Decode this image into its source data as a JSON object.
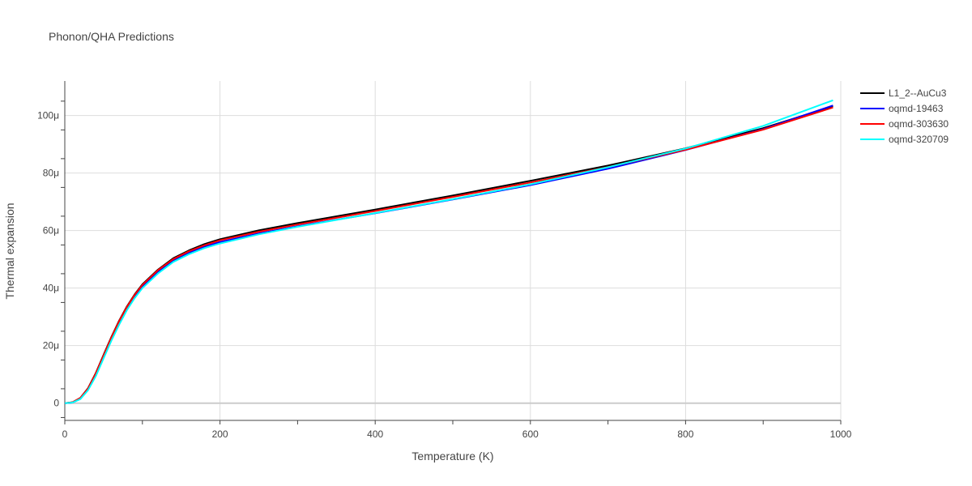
{
  "chart_data": {
    "type": "line",
    "title": "Phonon/QHA Predictions",
    "xlabel": "Temperature (K)",
    "ylabel": "Thermal expansion",
    "xlim": [
      0,
      1000
    ],
    "ylim": [
      -6,
      112
    ],
    "x_ticks": [
      0,
      200,
      400,
      600,
      800,
      1000
    ],
    "x_tick_labels": [
      "0",
      "200",
      "400",
      "600",
      "800",
      "1000"
    ],
    "y_ticks": [
      0,
      20,
      40,
      60,
      80,
      100
    ],
    "y_tick_labels": [
      "0",
      "20μ",
      "40μ",
      "60μ",
      "80μ",
      "100μ"
    ],
    "grid": true,
    "legend_position": "top-right",
    "x": [
      0,
      10,
      20,
      30,
      40,
      50,
      60,
      70,
      80,
      90,
      100,
      120,
      140,
      160,
      180,
      200,
      250,
      300,
      400,
      500,
      600,
      700,
      800,
      900,
      990
    ],
    "series": [
      {
        "name": "L1_2--AuCu3",
        "color": "#000000",
        "values": [
          0,
          0.3,
          1.8,
          5.2,
          10.5,
          16.8,
          23.0,
          28.7,
          33.6,
          37.8,
          41.3,
          46.4,
          50.4,
          53.1,
          55.3,
          57.0,
          60.1,
          62.6,
          67.3,
          72.2,
          77.3,
          82.6,
          88.6,
          95.6,
          103.2
        ]
      },
      {
        "name": "oqmd-19463",
        "color": "#0000ff",
        "values": [
          0,
          0.2,
          1.5,
          4.8,
          9.9,
          16.1,
          22.2,
          27.8,
          32.8,
          37.0,
          40.5,
          45.6,
          49.6,
          52.3,
          54.4,
          56.0,
          59.0,
          61.5,
          66.0,
          70.8,
          75.8,
          81.5,
          88.0,
          95.3,
          103.5
        ]
      },
      {
        "name": "oqmd-303630",
        "color": "#ff0000",
        "values": [
          0,
          0.3,
          1.8,
          5.1,
          10.4,
          16.6,
          22.8,
          28.5,
          33.4,
          37.6,
          41.1,
          46.2,
          50.1,
          52.8,
          54.9,
          56.6,
          59.6,
          62.1,
          66.8,
          71.7,
          76.7,
          82.1,
          88.1,
          95.1,
          102.8
        ]
      },
      {
        "name": "oqmd-320709",
        "color": "#00ffff",
        "values": [
          0,
          0.2,
          1.4,
          4.5,
          9.4,
          15.6,
          21.7,
          27.3,
          32.3,
          36.5,
          40.0,
          45.1,
          49.1,
          51.8,
          53.9,
          55.5,
          58.7,
          61.3,
          66.1,
          70.9,
          76.1,
          82.0,
          88.5,
          96.4,
          105.3
        ]
      }
    ]
  }
}
